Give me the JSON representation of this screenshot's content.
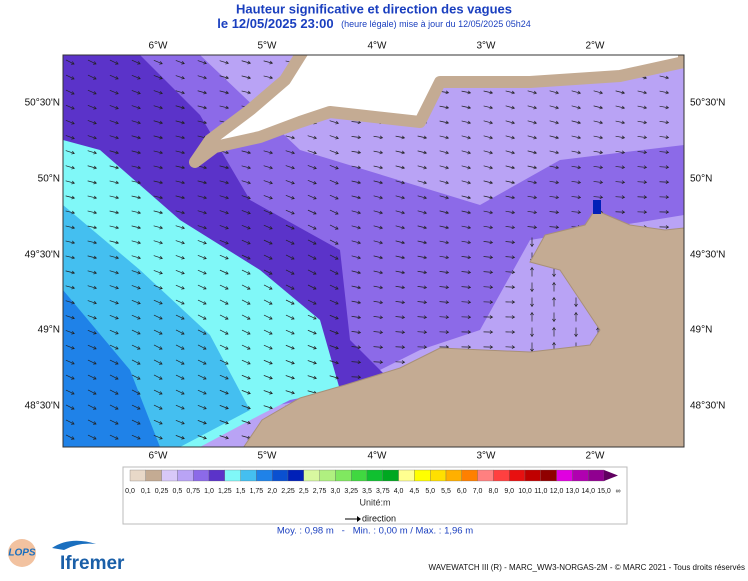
{
  "header": {
    "title": "Hauteur significative et direction des vagues",
    "date": "le 12/05/2025 23:00",
    "update_note": "(heure légale) mise à jour du 12/05/2025 05h24"
  },
  "map": {
    "longitude_labels": [
      "6°W",
      "5°W",
      "4°W",
      "3°W",
      "2°W"
    ],
    "latitude_labels": [
      "50°30'N",
      "50°N",
      "49°30'N",
      "49°N",
      "48°30'N"
    ]
  },
  "legend": {
    "items": [
      {
        "label": "0,0",
        "color": "#e8d8c8"
      },
      {
        "label": "0,1",
        "color": "#c4ab93"
      },
      {
        "label": "0,25",
        "color": "#d8c8f8"
      },
      {
        "label": "0,5",
        "color": "#b9a3f5"
      },
      {
        "label": "0,75",
        "color": "#8c6ae8"
      },
      {
        "label": "1,0",
        "color": "#5b33c9"
      },
      {
        "label": "1,25",
        "color": "#80f8f8"
      },
      {
        "label": "1,5",
        "color": "#44bff0"
      },
      {
        "label": "1,75",
        "color": "#1f82e8"
      },
      {
        "label": "2,0",
        "color": "#0a50d0"
      },
      {
        "label": "2,25",
        "color": "#0020b8"
      },
      {
        "label": "2,5",
        "color": "#d8f8a0"
      },
      {
        "label": "2,75",
        "color": "#b0f080"
      },
      {
        "label": "3,0",
        "color": "#80e860"
      },
      {
        "label": "3,25",
        "color": "#40d840"
      },
      {
        "label": "3,5",
        "color": "#10c030"
      },
      {
        "label": "3,75",
        "color": "#00a820"
      },
      {
        "label": "4,0",
        "color": "#ffff90"
      },
      {
        "label": "4,5",
        "color": "#ffff00"
      },
      {
        "label": "5,0",
        "color": "#ffe000"
      },
      {
        "label": "5,5",
        "color": "#ffb000"
      },
      {
        "label": "6,0",
        "color": "#ff8000"
      },
      {
        "label": "7,0",
        "color": "#ff8080"
      },
      {
        "label": "8,0",
        "color": "#ff4040"
      },
      {
        "label": "9,0",
        "color": "#e81010"
      },
      {
        "label": "10,0",
        "color": "#c00000"
      },
      {
        "label": "11,0",
        "color": "#900000"
      },
      {
        "label": "12,0",
        "color": "#e000e0"
      },
      {
        "label": "13,0",
        "color": "#b000b0"
      },
      {
        "label": "14,0",
        "color": "#900090"
      },
      {
        "label": "15,0",
        "color": "#600060"
      }
    ],
    "overflow_label": "∞",
    "unit": "Unité:m",
    "direction_label": "direction"
  },
  "stats": "Moy. : 0,98 m   -   Min. : 0,00 m / Max. : 1,96 m",
  "footer": {
    "credits": "WAVEWATCH III (R) - MARC_WW3-NORGAS-2M - © MARC 2021 - Tous droits réservés",
    "logo_left": "LOPS",
    "logo_right": "Ifremer"
  }
}
